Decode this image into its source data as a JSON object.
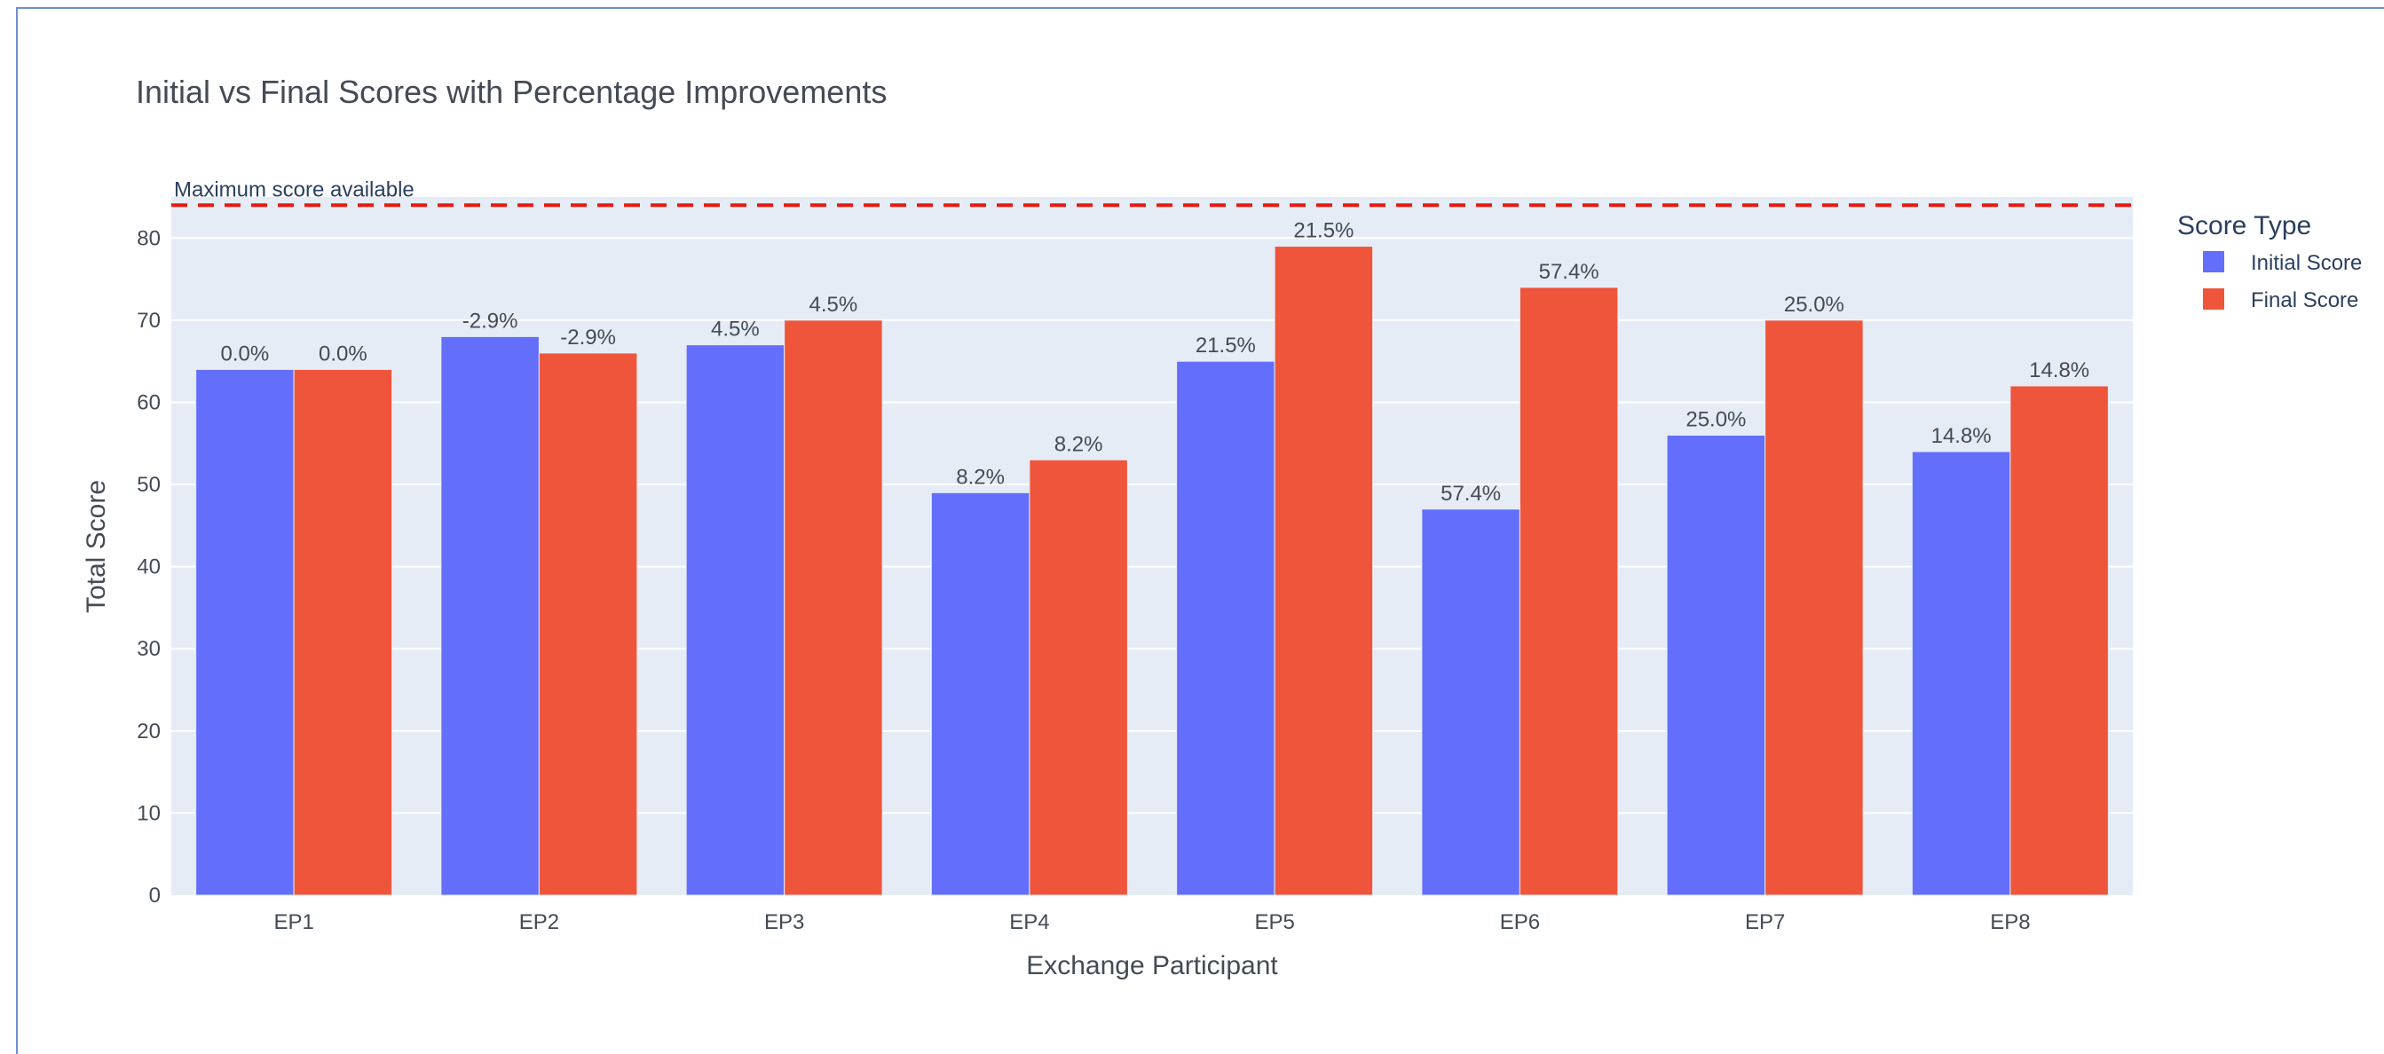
{
  "chart_data": {
    "type": "bar",
    "title": "Initial vs Final Scores with Percentage Improvements",
    "xlabel": "Exchange Participant",
    "ylabel": "Total Score",
    "categories": [
      "EP1",
      "EP2",
      "EP3",
      "EP4",
      "EP5",
      "EP6",
      "EP7",
      "EP8"
    ],
    "series": [
      {
        "name": "Initial Score",
        "color": "#636efa",
        "values": [
          64,
          68,
          67,
          49,
          65,
          47,
          56,
          54
        ],
        "labels": [
          "0.0%",
          "-2.9%",
          "4.5%",
          "8.2%",
          "21.5%",
          "57.4%",
          "25.0%",
          "14.8%"
        ]
      },
      {
        "name": "Final Score",
        "color": "#ef553b",
        "values": [
          64,
          66,
          70,
          53,
          79,
          74,
          70,
          62
        ],
        "labels": [
          "0.0%",
          "-2.9%",
          "4.5%",
          "8.2%",
          "21.5%",
          "57.4%",
          "25.0%",
          "14.8%"
        ]
      }
    ],
    "yticks": [
      0,
      10,
      20,
      30,
      40,
      50,
      60,
      70,
      80
    ],
    "ylim": [
      0,
      85
    ],
    "reference_line": {
      "value": 84,
      "label": "Maximum score available",
      "color": "#e8190f"
    },
    "legend": {
      "title": "Score Type",
      "position": "right"
    },
    "grid": true
  }
}
